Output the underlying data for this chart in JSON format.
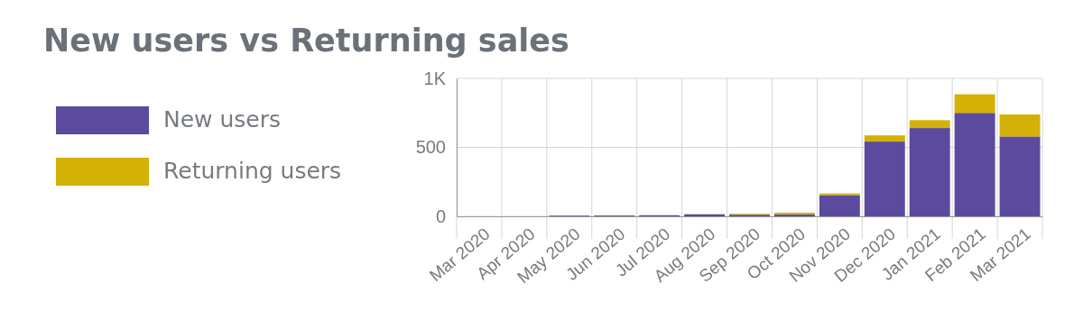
{
  "chart_data": {
    "type": "bar",
    "title": "New users vs Returning sales",
    "categories": [
      "Mar 2020",
      "Apr 2020",
      "May 2020",
      "Jun 2020",
      "Jul 2020",
      "Aug 2020",
      "Sep 2020",
      "Oct 2020",
      "Nov 2020",
      "Dec 2020",
      "Jan 2021",
      "Feb 2021",
      "Mar 2021"
    ],
    "series": [
      {
        "name": "New users",
        "color": "#5b4a9e",
        "values": [
          0,
          0,
          5,
          6,
          8,
          15,
          12,
          15,
          154,
          542,
          640,
          750,
          579
        ]
      },
      {
        "name": "Returning users",
        "color": "#d4b106",
        "values": [
          0,
          0,
          0,
          1,
          0,
          0,
          6,
          12,
          12,
          45,
          57,
          135,
          160
        ]
      }
    ],
    "stacked": true,
    "ylim": [
      0,
      1000
    ],
    "yticks": [
      0,
      500,
      {
        "value": 1000,
        "label": "1K"
      }
    ],
    "grid": true,
    "legend": "left"
  }
}
